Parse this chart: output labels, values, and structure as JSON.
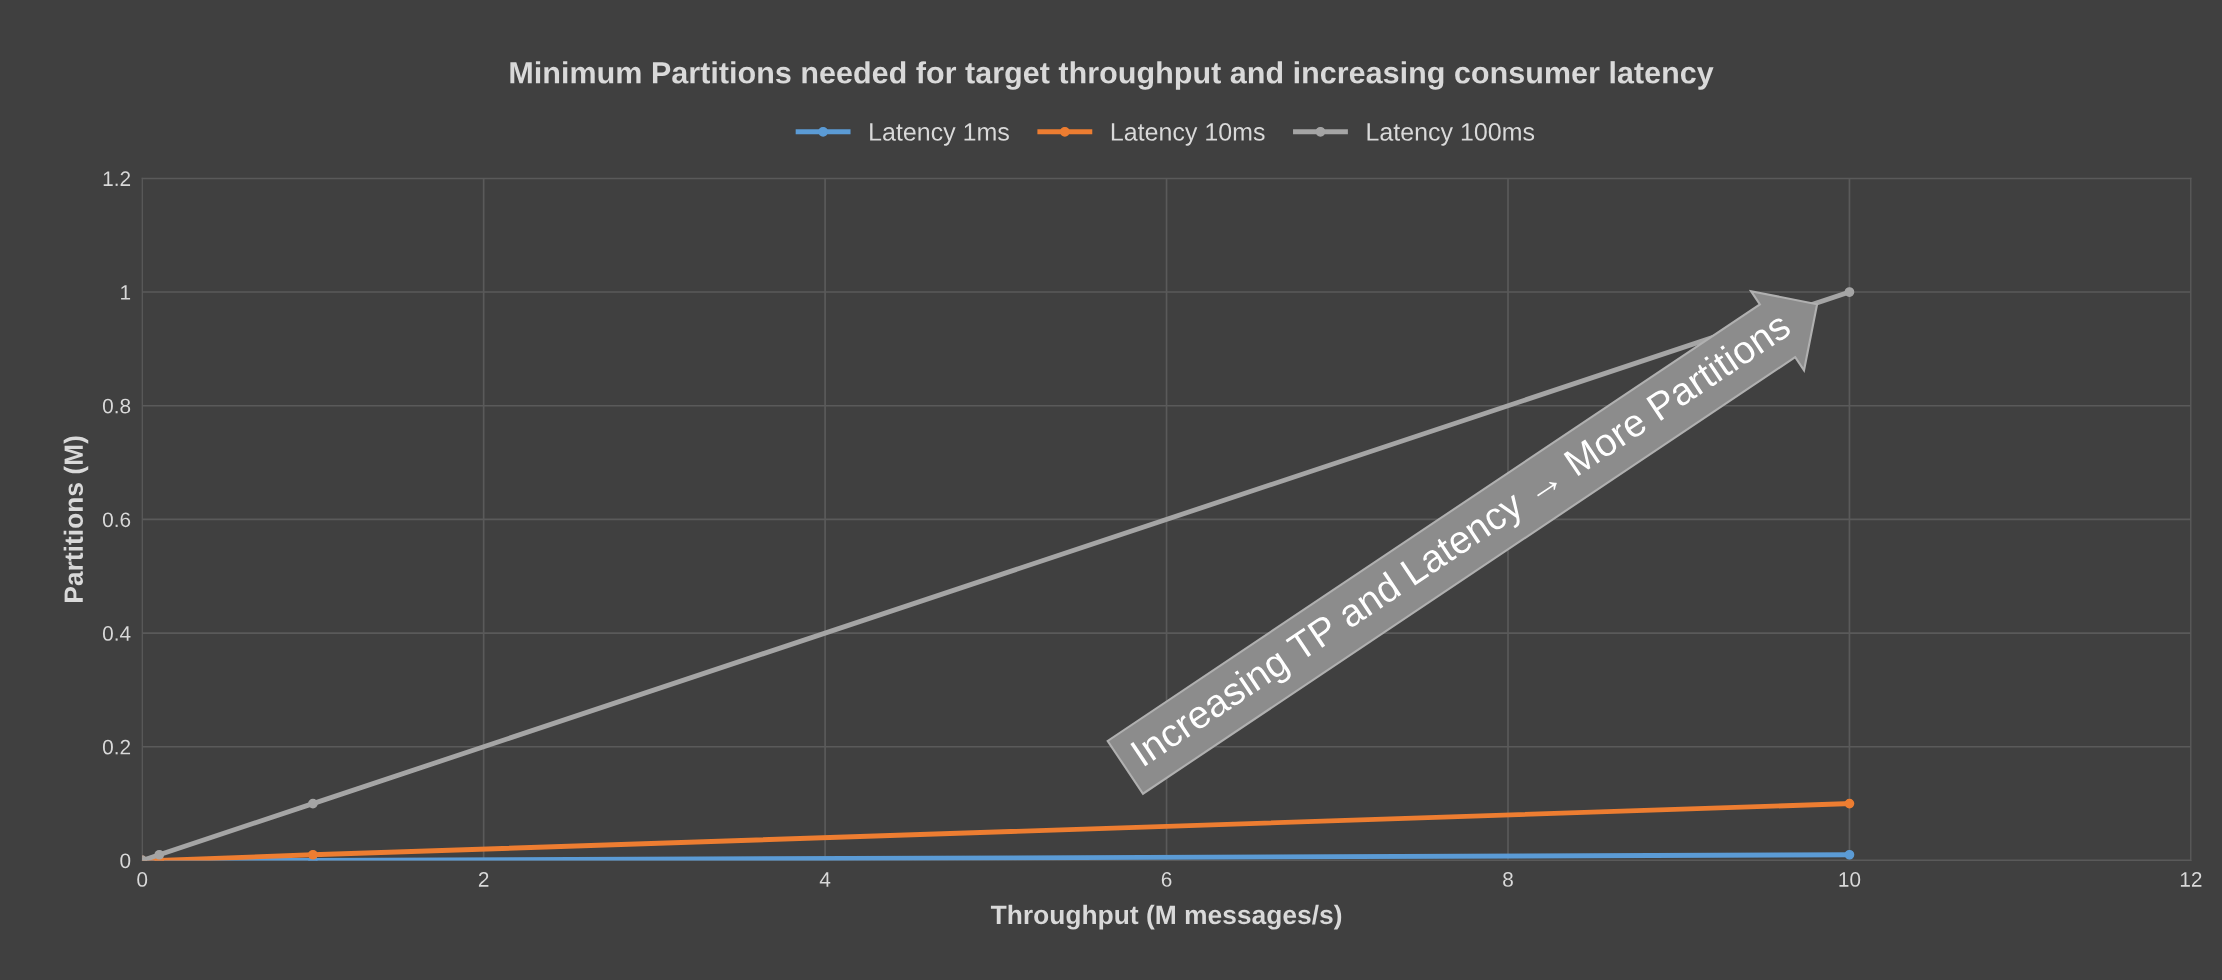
{
  "chart_data": {
    "type": "line",
    "title": "Minimum Partitions needed for target throughput and increasing consumer latency",
    "xlabel": "Throughput (M messages/s)",
    "ylabel": "Partitions (M)",
    "x": [
      0,
      0.1,
      1,
      10
    ],
    "series": [
      {
        "name": "Latency 1ms",
        "color": "#5b9bd5",
        "values": [
          0,
          0,
          0,
          0.01
        ]
      },
      {
        "name": "Latency 10ms",
        "color": "#ed7d31",
        "values": [
          0,
          0,
          0.01,
          0.1
        ]
      },
      {
        "name": "Latency 100ms",
        "color": "#a5a5a5",
        "values": [
          0,
          0.01,
          0.1,
          1
        ]
      }
    ],
    "xlim": [
      0,
      12
    ],
    "xticks": [
      0,
      2,
      4,
      6,
      8,
      10,
      12
    ],
    "ylim": [
      0,
      1.2
    ],
    "yticks": [
      0,
      0.2,
      0.4,
      0.6,
      0.8,
      1,
      1.2
    ],
    "grid": true,
    "legend": "top",
    "marker": "circle",
    "line_style": "solid",
    "annotations": [
      "Increasing TP and Latency → More Partitions"
    ]
  }
}
